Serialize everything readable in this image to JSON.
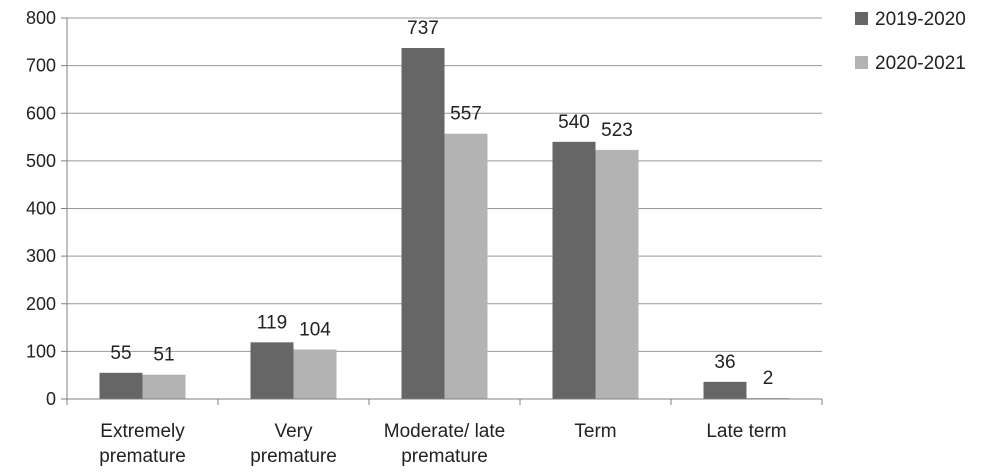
{
  "chart_data": {
    "type": "bar",
    "categories": [
      [
        "Extremely",
        "premature"
      ],
      [
        "Very",
        "premature"
      ],
      [
        "Moderate/ late",
        "premature"
      ],
      [
        "Term"
      ],
      [
        "Late term"
      ]
    ],
    "series": [
      {
        "name": "2019-2020",
        "values": [
          55,
          119,
          737,
          540,
          36
        ],
        "color": "#666666"
      },
      {
        "name": "2020-2021",
        "values": [
          51,
          104,
          557,
          523,
          2
        ],
        "color": "#b3b3b3"
      }
    ],
    "title": "",
    "xlabel": "",
    "ylabel": "",
    "ylim": [
      0,
      800
    ],
    "yticks": [
      0,
      100,
      200,
      300,
      400,
      500,
      600,
      700,
      800
    ],
    "grid": true,
    "legend": "top-right"
  }
}
